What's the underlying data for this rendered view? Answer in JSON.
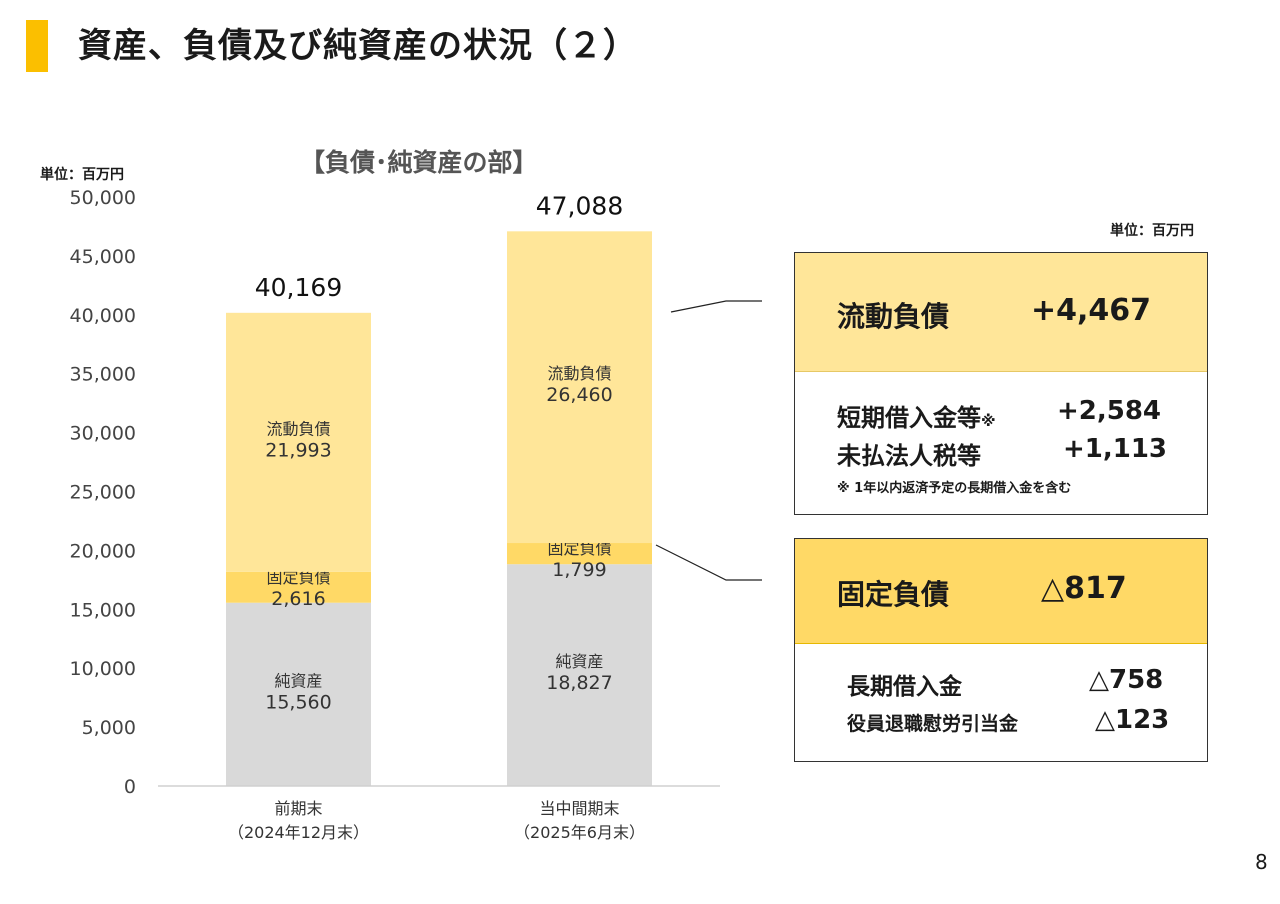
{
  "page": {
    "title": "資産、負債及び純資産の状況（２）",
    "page_number": "8"
  },
  "chart_data": {
    "type": "bar",
    "stacked": true,
    "title": "【負債･純資産の部】",
    "unit": "単位：百万円",
    "categories": [
      {
        "line1": "前期末",
        "line2": "（2024年12月末）"
      },
      {
        "line1": "当中間期末",
        "line2": "（2025年6月末）"
      }
    ],
    "series": [
      {
        "name": "純資産",
        "values": [
          15560,
          18827
        ],
        "labels": [
          "15,560",
          "18,827"
        ],
        "color": "#d9d9d9"
      },
      {
        "name": "固定負債",
        "values": [
          2616,
          1799
        ],
        "labels": [
          "2,616",
          "1,799"
        ],
        "color": "#ffd966"
      },
      {
        "name": "流動負債",
        "values": [
          21993,
          26460
        ],
        "labels": [
          "21,993",
          "26,460"
        ],
        "color": "#ffe699"
      }
    ],
    "totals": [
      "40,169",
      "47,088"
    ],
    "ylim": [
      0,
      50000
    ],
    "yticks": [
      {
        "value": 0,
        "label": "0"
      },
      {
        "value": 5000,
        "label": "5,000"
      },
      {
        "value": 10000,
        "label": "10,000"
      },
      {
        "value": 15000,
        "label": "15,000"
      },
      {
        "value": 20000,
        "label": "20,000"
      },
      {
        "value": 25000,
        "label": "25,000"
      },
      {
        "value": 30000,
        "label": "30,000"
      },
      {
        "value": 35000,
        "label": "35,000"
      },
      {
        "value": 40000,
        "label": "40,000"
      },
      {
        "value": 45000,
        "label": "45,000"
      },
      {
        "value": 50000,
        "label": "50,000"
      }
    ],
    "grid": false
  },
  "detail": {
    "unit": "単位：百万円",
    "current": {
      "label": "流動負債",
      "value": "+4,467",
      "color": "#ffe699",
      "items": [
        {
          "label": "短期借入金等",
          "mark": "※",
          "value": "+2,584"
        },
        {
          "label": "未払法人税等",
          "mark": "",
          "value": "+1,113"
        }
      ],
      "note": "※ 1年以内返済予定の長期借入金を含む"
    },
    "fixed": {
      "label": "固定負債",
      "value": "△817",
      "color": "#ffd966",
      "items": [
        {
          "label": "長期借入金",
          "value": "△758"
        },
        {
          "label": "役員退職慰労引当金",
          "value": "△123"
        }
      ]
    }
  },
  "colors": {
    "accent": "#fbbf00"
  }
}
